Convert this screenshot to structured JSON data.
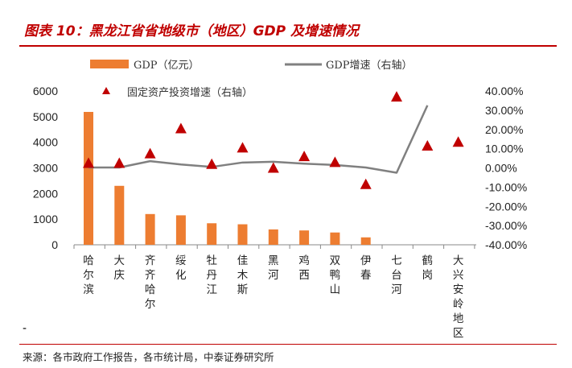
{
  "title": "图表 10：黑龙江省省地级市（地区）GDP 及增速情况",
  "source": "来源：各市政府工作报告，各市统计局，中泰证券研究所",
  "footnote_mark": "-",
  "colors": {
    "accent": "#c00000",
    "bar": "#ed7d31",
    "line": "#808080",
    "marker": "#c00000"
  },
  "chart_data": {
    "type": "bar",
    "title": "黑龙江省省地级市（地区）GDP 及增速情况",
    "categories": [
      "哈尔滨",
      "大庆",
      "齐齐哈尔",
      "绥化",
      "牡丹江",
      "佳木斯",
      "黑河",
      "鸡西",
      "双鸭山",
      "伊春",
      "七台河",
      "鹤岗",
      "大兴安岭地区"
    ],
    "series": [
      {
        "name": "GDP（亿元）",
        "type": "bar",
        "axis": "left",
        "values": [
          5184,
          2300,
          1200,
          1150,
          840,
          800,
          600,
          560,
          480,
          290,
          null,
          null,
          null
        ]
      },
      {
        "name": "GDP增速（右轴）",
        "type": "line",
        "axis": "right",
        "values": [
          0.2,
          0.2,
          3.5,
          1.8,
          0.5,
          2.8,
          3.2,
          2.2,
          1.5,
          0.2,
          -2.5,
          32.5,
          null
        ]
      },
      {
        "name": "固定资产投资增速（右轴）",
        "type": "scatter",
        "axis": "right",
        "values": [
          2.5,
          2.5,
          7.5,
          20.5,
          2.0,
          10.5,
          0.0,
          6.0,
          3.0,
          -8.5,
          37.0,
          11.5,
          13.5
        ]
      }
    ],
    "ylim_left": [
      0,
      6000
    ],
    "yticks_left": [
      "6000",
      "5000",
      "4000",
      "3000",
      "2000",
      "1000",
      "0"
    ],
    "ylim_right": [
      -40,
      40
    ],
    "yticks_right": [
      "40.00%",
      "30.00%",
      "20.00%",
      "10.00%",
      "0.00%",
      "-10.00%",
      "-20.00%",
      "-30.00%",
      "-40.00%"
    ],
    "xlabel": "",
    "ylabel": "",
    "legend": [
      "GDP（亿元）",
      "GDP增速（右轴）",
      "固定资产投资增速（右轴）"
    ]
  }
}
